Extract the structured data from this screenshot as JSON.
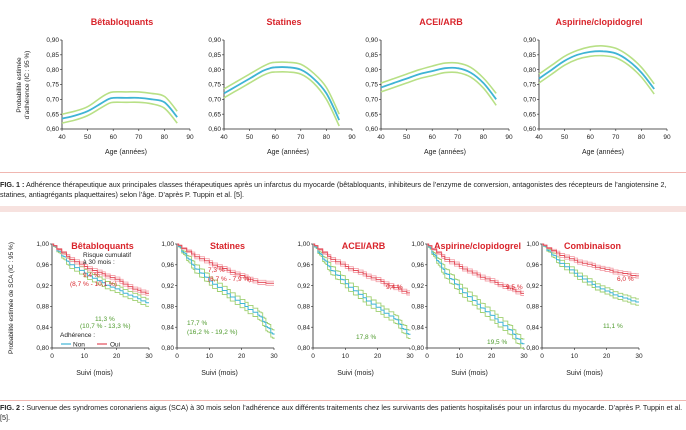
{
  "colors": {
    "title": "#d9252c",
    "fig1_line": "#3fb4d4",
    "fig1_band": "#b8e086",
    "non_adherent": "#3fb4d4",
    "non_adherent_band": "#9fcf6f",
    "adherent": "#e34d5a",
    "adherent_band": "#f4a5ad",
    "green_text": "#4e9a2c",
    "red_text": "#d9252c",
    "caption_rule": "#f0b7b1"
  },
  "figure1": {
    "caption_label": "FIG. 1 :",
    "caption_text": " Adhérence thérapeutique aux principales classes thérapeutiques après un infarctus du myocarde (bêtabloquants, inhibiteurs de l’enzyme de conversion, antagonistes des récepteurs de l’angiotensine 2, statines, antiagrégants plaquettaires) selon l’âge. D’après P. Tuppin et al. [5].",
    "ylabel_line1": "Probabilité estimée",
    "ylabel_line2": "d’adhérence (IC : 95 %)",
    "y_ticks": [
      "0,90",
      "0,85",
      "0,80",
      "0,75",
      "0,70",
      "0,65",
      "0,60"
    ],
    "x_ticks": [
      "40",
      "50",
      "60",
      "70",
      "80",
      "90"
    ],
    "xlabel": "Age (années)"
  },
  "figure2": {
    "caption_label": "FIG. 2 :",
    "caption_text": " Survenue des syndromes coronariens aigus (SCA) à 30 mois selon l’adhérence aux différents traitements chez les survivants des patients hospitalisés pour un infarctus du myocarde. D’après P. Tuppin et al. [5].",
    "ylabel": "Probabilité estimée de SCA (IC : 95 %)",
    "y_ticks": [
      "1,00",
      "0,96",
      "0,92",
      "0,88",
      "0,84",
      "0,80"
    ],
    "x_ticks": [
      "0",
      "10",
      "20",
      "30"
    ],
    "xlabel": "Suivi (mois)",
    "risk_header": "Risque cumulatif\nà 30 mois :",
    "legend_title": "Adhérence :",
    "legend_non": "Non",
    "legend_oui": "Oui"
  },
  "chart_data": [
    {
      "type": "line",
      "panel": "fig1",
      "title": "Bêtabloquants",
      "xlabel": "Age (années)",
      "ylabel": "Probabilité estimée d’adhérence (IC : 95 %)",
      "xlim": [
        40,
        90
      ],
      "ylim": [
        0.6,
        0.9
      ],
      "x": [
        40,
        45,
        50,
        55,
        58,
        60,
        65,
        70,
        75,
        80,
        85
      ],
      "series": [
        {
          "values": [
            0.635,
            0.645,
            0.66,
            0.685,
            0.7,
            0.705,
            0.705,
            0.705,
            0.7,
            0.69,
            0.64
          ],
          "lower": [
            0.62,
            0.63,
            0.645,
            0.67,
            0.685,
            0.69,
            0.69,
            0.69,
            0.685,
            0.67,
            0.62
          ],
          "upper": [
            0.65,
            0.66,
            0.675,
            0.705,
            0.72,
            0.725,
            0.725,
            0.725,
            0.72,
            0.71,
            0.66
          ]
        }
      ]
    },
    {
      "type": "line",
      "panel": "fig1",
      "title": "Statines",
      "xlabel": "Age (années)",
      "xlim": [
        40,
        90
      ],
      "ylim": [
        0.6,
        0.9
      ],
      "x": [
        40,
        45,
        50,
        55,
        58,
        60,
        65,
        70,
        75,
        80,
        85
      ],
      "series": [
        {
          "values": [
            0.72,
            0.745,
            0.77,
            0.795,
            0.805,
            0.808,
            0.808,
            0.8,
            0.77,
            0.72,
            0.63
          ],
          "lower": [
            0.705,
            0.73,
            0.755,
            0.78,
            0.79,
            0.792,
            0.792,
            0.785,
            0.755,
            0.7,
            0.61
          ],
          "upper": [
            0.735,
            0.76,
            0.785,
            0.81,
            0.822,
            0.825,
            0.825,
            0.818,
            0.788,
            0.74,
            0.65
          ]
        }
      ]
    },
    {
      "type": "line",
      "panel": "fig1",
      "title": "ACEI/ARB",
      "xlabel": "Age (années)",
      "xlim": [
        40,
        90
      ],
      "ylim": [
        0.6,
        0.9
      ],
      "x": [
        40,
        45,
        50,
        55,
        60,
        65,
        70,
        75,
        80,
        85
      ],
      "series": [
        {
          "values": [
            0.74,
            0.755,
            0.77,
            0.785,
            0.795,
            0.805,
            0.805,
            0.79,
            0.755,
            0.7
          ],
          "lower": [
            0.725,
            0.74,
            0.755,
            0.77,
            0.78,
            0.79,
            0.79,
            0.775,
            0.738,
            0.68
          ],
          "upper": [
            0.755,
            0.77,
            0.785,
            0.8,
            0.812,
            0.822,
            0.822,
            0.808,
            0.772,
            0.72
          ]
        }
      ]
    },
    {
      "type": "line",
      "panel": "fig1",
      "title": "Aspirine/clopidogrel",
      "xlabel": "Age (années)",
      "xlim": [
        40,
        90
      ],
      "ylim": [
        0.6,
        0.9
      ],
      "x": [
        40,
        45,
        50,
        55,
        60,
        65,
        70,
        75,
        80,
        85
      ],
      "series": [
        {
          "values": [
            0.77,
            0.8,
            0.83,
            0.85,
            0.86,
            0.862,
            0.855,
            0.83,
            0.79,
            0.735
          ],
          "lower": [
            0.755,
            0.785,
            0.815,
            0.835,
            0.845,
            0.847,
            0.84,
            0.815,
            0.775,
            0.718
          ],
          "upper": [
            0.785,
            0.815,
            0.845,
            0.865,
            0.877,
            0.88,
            0.872,
            0.847,
            0.808,
            0.752
          ]
        }
      ]
    },
    {
      "type": "line",
      "panel": "fig2",
      "title": "Bêtabloquants",
      "xlabel": "Suivi (mois)",
      "ylabel": "Probabilité estimée de SCA (IC : 95 %)",
      "xlim": [
        0,
        30
      ],
      "ylim": [
        0.8,
        1.0
      ],
      "x": [
        0,
        5,
        10,
        15,
        20,
        25,
        30
      ],
      "series": [
        {
          "name": "Non",
          "values": [
            1.0,
            0.965,
            0.945,
            0.928,
            0.914,
            0.9,
            0.887
          ],
          "band": 0.007
        },
        {
          "name": "Oui",
          "values": [
            1.0,
            0.975,
            0.958,
            0.945,
            0.933,
            0.915,
            0.906
          ],
          "band": 0.004
        }
      ],
      "annotations": [
        {
          "text": "Risque cumulatif",
          "color": "#222222"
        },
        {
          "text": "à 30 mois :",
          "color": "#222222"
        },
        {
          "text": "9,4 %",
          "color": "#d9252c"
        },
        {
          "text": "(8,7 % - 10,1 %)",
          "color": "#d9252c"
        },
        {
          "text": "11,3 %",
          "color": "#4e9a2c"
        },
        {
          "text": "(10,7 % - 13,3 %)",
          "color": "#4e9a2c"
        }
      ],
      "legend": {
        "title": "Adhérence :",
        "entries": [
          "Non",
          "Oui"
        ]
      }
    },
    {
      "type": "line",
      "panel": "fig2",
      "title": "Statines",
      "xlabel": "Suivi (mois)",
      "xlim": [
        0,
        30
      ],
      "ylim": [
        0.8,
        1.0
      ],
      "x": [
        0,
        5,
        10,
        15,
        20,
        25,
        30
      ],
      "series": [
        {
          "name": "Non",
          "values": [
            1.0,
            0.958,
            0.93,
            0.908,
            0.885,
            0.865,
            0.823
          ],
          "band": 0.008
        },
        {
          "name": "Oui",
          "values": [
            1.0,
            0.98,
            0.965,
            0.952,
            0.94,
            0.928,
            0.927
          ],
          "band": 0.004
        }
      ],
      "annotations": [
        {
          "text": "7,3 %",
          "color": "#d9252c"
        },
        {
          "text": "(6,7 % - 7,9 %)",
          "color": "#d9252c"
        },
        {
          "text": "17,7 %",
          "color": "#4e9a2c"
        },
        {
          "text": "(16,2 % - 19,2 %)",
          "color": "#4e9a2c"
        }
      ]
    },
    {
      "type": "line",
      "panel": "fig2",
      "title": "ACEI/ARB",
      "xlabel": "Suivi (mois)",
      "xlim": [
        0,
        30
      ],
      "ylim": [
        0.8,
        1.0
      ],
      "x": [
        0,
        5,
        10,
        15,
        20,
        25,
        30
      ],
      "series": [
        {
          "name": "Non",
          "values": [
            1.0,
            0.955,
            0.925,
            0.9,
            0.878,
            0.858,
            0.823
          ],
          "band": 0.008
        },
        {
          "name": "Oui",
          "values": [
            1.0,
            0.975,
            0.958,
            0.945,
            0.932,
            0.918,
            0.906
          ],
          "band": 0.004
        }
      ],
      "annotations": [
        {
          "text": "9,4 %",
          "color": "#d9252c"
        },
        {
          "text": "17,8 %",
          "color": "#4e9a2c"
        }
      ]
    },
    {
      "type": "line",
      "panel": "fig2",
      "title": "Aspirine/clopidogrel",
      "xlabel": "Suivi (mois)",
      "xlim": [
        0,
        30
      ],
      "ylim": [
        0.8,
        1.0
      ],
      "x": [
        0,
        5,
        10,
        15,
        20,
        25,
        30
      ],
      "series": [
        {
          "name": "Non",
          "values": [
            1.0,
            0.95,
            0.915,
            0.888,
            0.862,
            0.838,
            0.805
          ],
          "band": 0.009
        },
        {
          "name": "Oui",
          "values": [
            1.0,
            0.975,
            0.958,
            0.943,
            0.93,
            0.917,
            0.905
          ],
          "band": 0.004
        }
      ],
      "annotations": [
        {
          "text": "9,5 %",
          "color": "#d9252c"
        },
        {
          "text": "19,5 %",
          "color": "#4e9a2c"
        }
      ]
    },
    {
      "type": "line",
      "panel": "fig2",
      "title": "Combinaison",
      "xlabel": "Suivi (mois)",
      "xlim": [
        0,
        30
      ],
      "ylim": [
        0.8,
        1.0
      ],
      "x": [
        0,
        5,
        10,
        15,
        20,
        25,
        30
      ],
      "series": [
        {
          "name": "Non",
          "values": [
            1.0,
            0.968,
            0.945,
            0.925,
            0.91,
            0.898,
            0.889
          ],
          "band": 0.006
        },
        {
          "name": "Oui",
          "values": [
            1.0,
            0.982,
            0.97,
            0.961,
            0.952,
            0.945,
            0.94
          ],
          "band": 0.004
        }
      ],
      "annotations": [
        {
          "text": "6,0 %",
          "color": "#d9252c"
        },
        {
          "text": "11,1 %",
          "color": "#4e9a2c"
        }
      ]
    }
  ]
}
